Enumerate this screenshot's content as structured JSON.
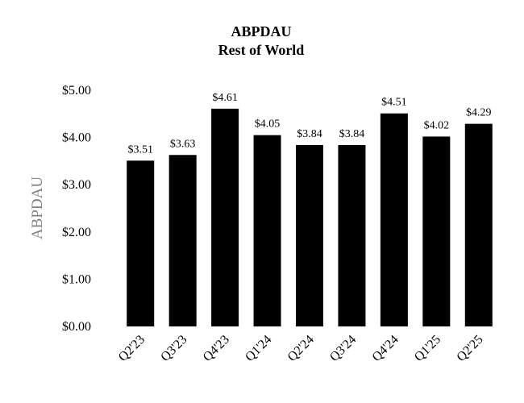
{
  "chart_data": {
    "type": "bar",
    "title": "ABPDAU",
    "subtitle": "Rest of World",
    "xlabel": "",
    "ylabel": "ABPDAU",
    "categories": [
      "Q2'23",
      "Q3'23",
      "Q4'23",
      "Q1'24",
      "Q2'24",
      "Q3'24",
      "Q4'24",
      "Q1'25",
      "Q2'25"
    ],
    "values": [
      3.51,
      3.63,
      4.61,
      4.05,
      3.84,
      3.84,
      4.51,
      4.02,
      4.29
    ],
    "data_labels": [
      "$3.51",
      "$3.63",
      "$4.61",
      "$4.05",
      "$3.84",
      "$3.84",
      "$4.51",
      "$4.02",
      "$4.29"
    ],
    "y_ticks": [
      0,
      1,
      2,
      3,
      4,
      5
    ],
    "y_tick_labels": [
      "$0.00",
      "$1.00",
      "$2.00",
      "$3.00",
      "$4.00",
      "$5.00"
    ],
    "ylim": [
      0,
      5
    ],
    "grid": false,
    "legend": "none",
    "bar_color": "#000000",
    "ylabel_color": "#808080"
  }
}
